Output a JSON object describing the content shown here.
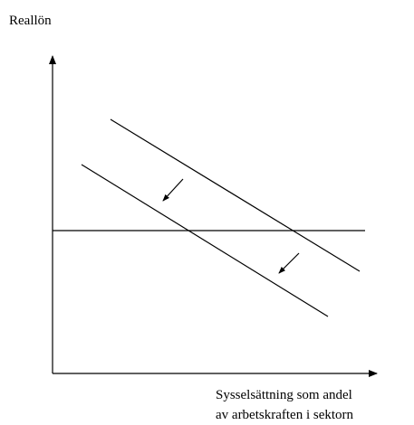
{
  "labels": {
    "y_axis": "Reallön",
    "x_axis": [
      "Sysselsättning som andel",
      "av arbetskraften i sektorn"
    ]
  }
}
